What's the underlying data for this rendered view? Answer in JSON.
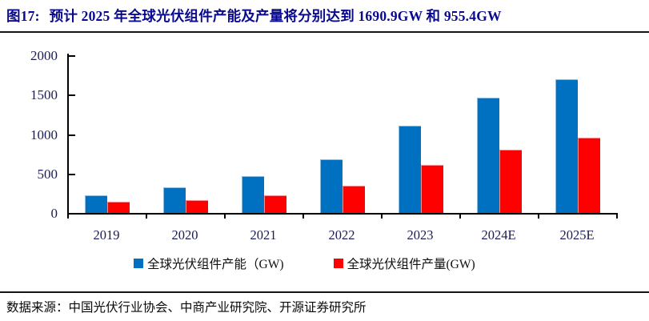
{
  "header": {
    "figure_label": "图17:",
    "title": "预计 2025 年全球光伏组件产能及产量将分别达到 1690.9GW 和 955.4GW"
  },
  "chart_data": {
    "type": "bar",
    "categories": [
      "2019",
      "2020",
      "2021",
      "2022",
      "2023",
      "2024E",
      "2025E"
    ],
    "series": [
      {
        "id": "capacity",
        "name": "全球光伏组件产能（GW)",
        "color": "#0070C0",
        "values": [
          220,
          325,
          465,
          685,
          1105,
          1460,
          1690.9
        ]
      },
      {
        "id": "production",
        "name": "全球光伏组件产量(GW)",
        "color": "#FF0000",
        "values": [
          140,
          165,
          222,
          350,
          612,
          800,
          955.4
        ]
      }
    ],
    "title": "",
    "xlabel": "",
    "ylabel": "",
    "ylim": [
      0,
      2000
    ],
    "yticks": [
      0,
      500,
      1000,
      1500,
      2000
    ],
    "grid": false,
    "legend_position": "bottom-center",
    "axis_color": "#000000",
    "tick_label_color": "#1c1c54"
  },
  "footer": {
    "source": "数据来源：中国光伏行业协会、中商产业研究院、开源证券研究所"
  }
}
